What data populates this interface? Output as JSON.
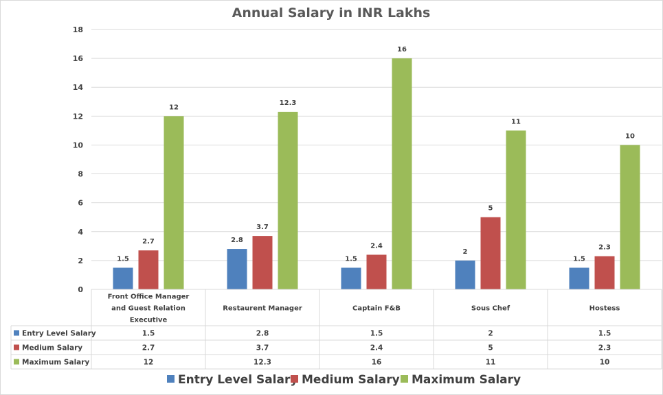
{
  "chart_data": {
    "type": "bar",
    "title": "Annual Salary in INR Lakhs",
    "xlabel": "",
    "ylabel": "",
    "ylim": [
      0,
      18
    ],
    "yticks": [
      0,
      2,
      4,
      6,
      8,
      10,
      12,
      14,
      16,
      18
    ],
    "grid": true,
    "legend_position": "bottom",
    "categories": [
      [
        "Front Office Manager",
        "and Guest Relation",
        "Executive"
      ],
      [
        "Restaurent Manager"
      ],
      [
        "Captain F&B"
      ],
      [
        "Sous Chef"
      ],
      [
        "Hostess"
      ]
    ],
    "series": [
      {
        "name": "Entry Level Salary",
        "color": "#4f81bd",
        "values": [
          1.5,
          2.8,
          1.5,
          2,
          1.5
        ],
        "labels": [
          "1.5",
          "2.8",
          "1.5",
          "2",
          "1.5"
        ]
      },
      {
        "name": "Medium Salary",
        "color": "#c0504d",
        "values": [
          2.7,
          3.7,
          2.4,
          5,
          2.3
        ],
        "labels": [
          "2.7",
          "3.7",
          "2.4",
          "5",
          "2.3"
        ]
      },
      {
        "name": "Maximum Salary",
        "color": "#9bbb59",
        "values": [
          12,
          12.3,
          16,
          11,
          10
        ],
        "labels": [
          "12",
          "12.3",
          "16",
          "11",
          "10"
        ]
      }
    ],
    "data_table": true
  }
}
